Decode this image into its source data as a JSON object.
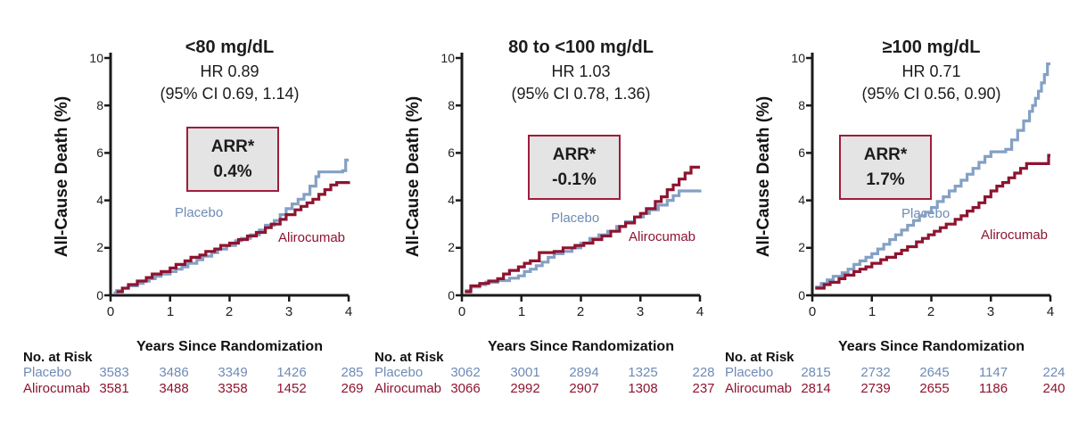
{
  "figure": {
    "y_axis_title": "All-Cause Death (%)",
    "x_axis_title": "Years Since Randomization",
    "no_at_risk_label": "No. at Risk",
    "y_ticks": [
      "10",
      "8",
      "6",
      "4",
      "2",
      "0"
    ],
    "x_ticks": [
      "0",
      "1",
      "2",
      "3",
      "4"
    ]
  },
  "colors": {
    "placebo_line": "#84A0C5",
    "placebo_text": "#6F8BB5",
    "alirocumab_line": "#8E1430",
    "alirocumab_text": "#8E1430",
    "arr_box_border": "#9E1D3C",
    "arr_box_fill": "#E4E4E4",
    "axis": "#1A1A1A"
  },
  "chart_data": [
    {
      "type": "line",
      "title": "<80 mg/dL",
      "hr": "HR 0.89",
      "ci": "(95% CI 0.69, 1.14)",
      "arr_label": "ARR*",
      "arr_value": "0.4%",
      "xlabel": "Years Since Randomization",
      "ylabel": "All-Cause Death (%)",
      "xlim": [
        0,
        4
      ],
      "ylim": [
        0,
        10
      ],
      "legend": [
        "Placebo",
        "Alirocumab"
      ],
      "series": [
        {
          "name": "Placebo",
          "color": "#84A0C5",
          "step": true,
          "points": [
            [
              0.05,
              0.1
            ],
            [
              0.1,
              0.2
            ],
            [
              0.2,
              0.3
            ],
            [
              0.3,
              0.4
            ],
            [
              0.45,
              0.5
            ],
            [
              0.55,
              0.6
            ],
            [
              0.65,
              0.7
            ],
            [
              0.75,
              0.8
            ],
            [
              0.85,
              0.9
            ],
            [
              1.0,
              1.0
            ],
            [
              1.1,
              1.1
            ],
            [
              1.2,
              1.2
            ],
            [
              1.3,
              1.35
            ],
            [
              1.45,
              1.5
            ],
            [
              1.55,
              1.65
            ],
            [
              1.7,
              1.8
            ],
            [
              1.8,
              1.95
            ],
            [
              1.95,
              2.1
            ],
            [
              2.1,
              2.3
            ],
            [
              2.2,
              2.4
            ],
            [
              2.35,
              2.55
            ],
            [
              2.5,
              2.75
            ],
            [
              2.6,
              2.95
            ],
            [
              2.75,
              3.15
            ],
            [
              2.85,
              3.4
            ],
            [
              2.95,
              3.65
            ],
            [
              3.05,
              3.85
            ],
            [
              3.15,
              4.05
            ],
            [
              3.25,
              4.25
            ],
            [
              3.35,
              4.6
            ],
            [
              3.45,
              5.0
            ],
            [
              3.5,
              5.2
            ],
            [
              3.9,
              5.25
            ],
            [
              3.95,
              5.7
            ],
            [
              4.0,
              5.7
            ]
          ]
        },
        {
          "name": "Alirocumab",
          "color": "#8E1430",
          "step": true,
          "points": [
            [
              0.1,
              0.15
            ],
            [
              0.2,
              0.3
            ],
            [
              0.3,
              0.45
            ],
            [
              0.45,
              0.6
            ],
            [
              0.6,
              0.75
            ],
            [
              0.7,
              0.9
            ],
            [
              0.85,
              1.0
            ],
            [
              1.0,
              1.15
            ],
            [
              1.1,
              1.3
            ],
            [
              1.25,
              1.45
            ],
            [
              1.35,
              1.6
            ],
            [
              1.5,
              1.7
            ],
            [
              1.6,
              1.85
            ],
            [
              1.75,
              1.95
            ],
            [
              1.85,
              2.1
            ],
            [
              2.0,
              2.2
            ],
            [
              2.15,
              2.35
            ],
            [
              2.3,
              2.5
            ],
            [
              2.45,
              2.65
            ],
            [
              2.6,
              2.85
            ],
            [
              2.7,
              3.0
            ],
            [
              2.85,
              3.2
            ],
            [
              2.95,
              3.4
            ],
            [
              3.1,
              3.6
            ],
            [
              3.2,
              3.75
            ],
            [
              3.3,
              3.9
            ],
            [
              3.4,
              4.05
            ],
            [
              3.5,
              4.25
            ],
            [
              3.6,
              4.45
            ],
            [
              3.7,
              4.65
            ],
            [
              3.8,
              4.75
            ],
            [
              4.0,
              4.8
            ]
          ]
        }
      ],
      "risk_table": {
        "x_values": [
          "0",
          "1",
          "2",
          "3",
          "4"
        ],
        "rows": [
          {
            "name": "Placebo",
            "values": [
              "3583",
              "3486",
              "3349",
              "1426",
              "285"
            ]
          },
          {
            "name": "Alirocumab",
            "values": [
              "3581",
              "3488",
              "3358",
              "1452",
              "269"
            ]
          }
        ]
      }
    },
    {
      "type": "line",
      "title": "80 to <100 mg/dL",
      "hr": "HR 1.03",
      "ci": "(95% CI 0.78, 1.36)",
      "arr_label": "ARR*",
      "arr_value": "-0.1%",
      "xlabel": "Years Since Randomization",
      "ylabel": "All-Cause Death (%)",
      "xlim": [
        0,
        4
      ],
      "ylim": [
        0,
        10
      ],
      "legend": [
        "Placebo",
        "Alirocumab"
      ],
      "series": [
        {
          "name": "Placebo",
          "color": "#84A0C5",
          "step": true,
          "points": [
            [
              0.05,
              0.2
            ],
            [
              0.15,
              0.35
            ],
            [
              0.3,
              0.45
            ],
            [
              0.4,
              0.55
            ],
            [
              0.6,
              0.62
            ],
            [
              0.8,
              0.72
            ],
            [
              0.95,
              0.82
            ],
            [
              1.05,
              1.0
            ],
            [
              1.15,
              1.1
            ],
            [
              1.25,
              1.25
            ],
            [
              1.35,
              1.4
            ],
            [
              1.45,
              1.6
            ],
            [
              1.55,
              1.75
            ],
            [
              1.7,
              1.85
            ],
            [
              1.85,
              2.0
            ],
            [
              2.0,
              2.2
            ],
            [
              2.15,
              2.4
            ],
            [
              2.3,
              2.55
            ],
            [
              2.45,
              2.7
            ],
            [
              2.6,
              2.9
            ],
            [
              2.75,
              3.1
            ],
            [
              2.9,
              3.3
            ],
            [
              3.05,
              3.45
            ],
            [
              3.15,
              3.6
            ],
            [
              3.3,
              3.8
            ],
            [
              3.45,
              4.0
            ],
            [
              3.55,
              4.2
            ],
            [
              3.65,
              4.4
            ],
            [
              4.0,
              4.45
            ]
          ]
        },
        {
          "name": "Alirocumab",
          "color": "#8E1430",
          "step": true,
          "points": [
            [
              0.05,
              0.15
            ],
            [
              0.15,
              0.4
            ],
            [
              0.3,
              0.5
            ],
            [
              0.45,
              0.6
            ],
            [
              0.6,
              0.7
            ],
            [
              0.7,
              0.9
            ],
            [
              0.8,
              1.05
            ],
            [
              0.95,
              1.2
            ],
            [
              1.05,
              1.35
            ],
            [
              1.15,
              1.45
            ],
            [
              1.3,
              1.8
            ],
            [
              1.55,
              1.85
            ],
            [
              1.7,
              2.0
            ],
            [
              1.9,
              2.1
            ],
            [
              2.05,
              2.2
            ],
            [
              2.2,
              2.35
            ],
            [
              2.35,
              2.5
            ],
            [
              2.5,
              2.7
            ],
            [
              2.65,
              2.9
            ],
            [
              2.75,
              3.05
            ],
            [
              2.9,
              3.3
            ],
            [
              3.0,
              3.45
            ],
            [
              3.1,
              3.65
            ],
            [
              3.25,
              3.95
            ],
            [
              3.35,
              4.15
            ],
            [
              3.45,
              4.45
            ],
            [
              3.55,
              4.65
            ],
            [
              3.65,
              4.9
            ],
            [
              3.75,
              5.15
            ],
            [
              3.85,
              5.4
            ],
            [
              4.0,
              5.4
            ]
          ]
        }
      ],
      "risk_table": {
        "x_values": [
          "0",
          "1",
          "2",
          "3",
          "4"
        ],
        "rows": [
          {
            "name": "Placebo",
            "values": [
              "3062",
              "3001",
              "2894",
              "1325",
              "228"
            ]
          },
          {
            "name": "Alirocumab",
            "values": [
              "3066",
              "2992",
              "2907",
              "1308",
              "237"
            ]
          }
        ]
      }
    },
    {
      "type": "line",
      "title": "≥100 mg/dL",
      "hr": "HR 0.71",
      "ci": "(95% CI 0.56, 0.90)",
      "arr_label": "ARR*",
      "arr_value": "1.7%",
      "xlabel": "Years Since Randomization",
      "ylabel": "All-Cause Death (%)",
      "xlim": [
        0,
        4
      ],
      "ylim": [
        0,
        10
      ],
      "legend": [
        "Placebo",
        "Alirocumab"
      ],
      "series": [
        {
          "name": "Placebo",
          "color": "#84A0C5",
          "step": true,
          "points": [
            [
              0.05,
              0.35
            ],
            [
              0.15,
              0.5
            ],
            [
              0.25,
              0.65
            ],
            [
              0.35,
              0.8
            ],
            [
              0.5,
              0.95
            ],
            [
              0.6,
              1.1
            ],
            [
              0.7,
              1.3
            ],
            [
              0.8,
              1.45
            ],
            [
              0.9,
              1.6
            ],
            [
              1.0,
              1.75
            ],
            [
              1.1,
              1.95
            ],
            [
              1.2,
              2.15
            ],
            [
              1.3,
              2.35
            ],
            [
              1.4,
              2.55
            ],
            [
              1.5,
              2.75
            ],
            [
              1.6,
              2.95
            ],
            [
              1.7,
              3.15
            ],
            [
              1.8,
              3.35
            ],
            [
              1.9,
              3.5
            ],
            [
              2.0,
              3.7
            ],
            [
              2.1,
              3.95
            ],
            [
              2.2,
              4.15
            ],
            [
              2.3,
              4.4
            ],
            [
              2.4,
              4.6
            ],
            [
              2.5,
              4.85
            ],
            [
              2.6,
              5.1
            ],
            [
              2.7,
              5.35
            ],
            [
              2.8,
              5.6
            ],
            [
              2.9,
              5.85
            ],
            [
              3.0,
              6.05
            ],
            [
              3.25,
              6.15
            ],
            [
              3.35,
              6.55
            ],
            [
              3.45,
              6.95
            ],
            [
              3.55,
              7.35
            ],
            [
              3.65,
              7.75
            ],
            [
              3.7,
              8.0
            ],
            [
              3.75,
              8.3
            ],
            [
              3.8,
              8.6
            ],
            [
              3.85,
              8.95
            ],
            [
              3.9,
              9.3
            ],
            [
              3.95,
              9.75
            ],
            [
              4.0,
              9.75
            ]
          ]
        },
        {
          "name": "Alirocumab",
          "color": "#8E1430",
          "step": true,
          "points": [
            [
              0.05,
              0.3
            ],
            [
              0.2,
              0.45
            ],
            [
              0.3,
              0.55
            ],
            [
              0.45,
              0.7
            ],
            [
              0.55,
              0.85
            ],
            [
              0.7,
              1.0
            ],
            [
              0.8,
              1.1
            ],
            [
              0.9,
              1.2
            ],
            [
              1.0,
              1.35
            ],
            [
              1.15,
              1.5
            ],
            [
              1.25,
              1.6
            ],
            [
              1.4,
              1.75
            ],
            [
              1.5,
              1.9
            ],
            [
              1.6,
              2.05
            ],
            [
              1.75,
              2.25
            ],
            [
              1.85,
              2.4
            ],
            [
              1.95,
              2.55
            ],
            [
              2.05,
              2.7
            ],
            [
              2.15,
              2.85
            ],
            [
              2.25,
              3.0
            ],
            [
              2.4,
              3.2
            ],
            [
              2.5,
              3.35
            ],
            [
              2.6,
              3.55
            ],
            [
              2.7,
              3.7
            ],
            [
              2.8,
              3.9
            ],
            [
              2.9,
              4.15
            ],
            [
              3.0,
              4.4
            ],
            [
              3.1,
              4.6
            ],
            [
              3.2,
              4.75
            ],
            [
              3.3,
              4.95
            ],
            [
              3.4,
              5.15
            ],
            [
              3.5,
              5.35
            ],
            [
              3.6,
              5.55
            ],
            [
              3.95,
              5.55
            ],
            [
              3.97,
              5.9
            ],
            [
              4.0,
              5.9
            ]
          ]
        }
      ],
      "risk_table": {
        "x_values": [
          "0",
          "1",
          "2",
          "3",
          "4"
        ],
        "rows": [
          {
            "name": "Placebo",
            "values": [
              "2815",
              "2732",
              "2645",
              "1147",
              "224"
            ]
          },
          {
            "name": "Alirocumab",
            "values": [
              "2814",
              "2739",
              "2655",
              "1186",
              "240"
            ]
          }
        ]
      }
    }
  ]
}
